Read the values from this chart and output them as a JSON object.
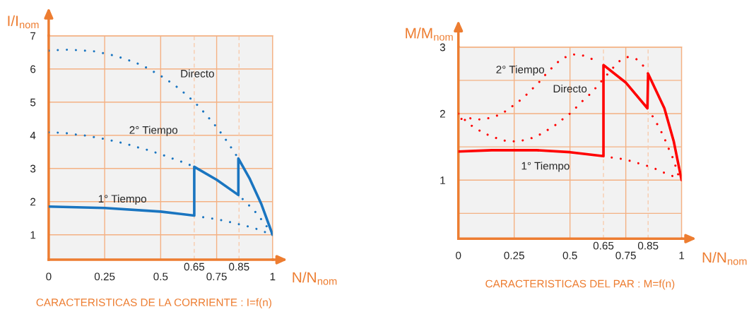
{
  "chart_data": [
    {
      "type": "line",
      "title": "CARACTERISTICAS DE LA CORRIENTE : I=f(n)",
      "xlabel": "N/N$_{nom}$",
      "ylabel": "I/I$_{nom}$",
      "xlim": [
        0,
        1
      ],
      "ylim": [
        0.25,
        7
      ],
      "xticks": [
        0,
        0.25,
        0.5,
        0.75,
        1
      ],
      "yticks": [
        1,
        2,
        3,
        4,
        5,
        6,
        7
      ],
      "grid": true,
      "series": [
        {
          "color": "#1a75c0",
          "line_style": "dotted",
          "x": [
            0,
            0.042,
            0.083,
            0.125,
            0.166,
            0.207,
            0.248,
            0.288,
            0.328,
            0.367,
            0.406,
            0.443,
            0.478,
            0.513,
            0.548,
            0.582,
            0.613,
            0.643,
            0.673,
            0.7,
            0.727,
            0.753,
            0.778,
            0.801,
            0.824,
            0.847
          ],
          "values": [
            6.55,
            6.57,
            6.58,
            6.57,
            6.55,
            6.53,
            6.47,
            6.41,
            6.33,
            6.24,
            6.14,
            6.02,
            5.88,
            5.74,
            5.58,
            5.41,
            5.23,
            5.05,
            4.85,
            4.64,
            4.43,
            4.22,
            3.99,
            3.77,
            3.54,
            3.3
          ]
        },
        {
          "color": "#1a75c0",
          "line_style": "dotted",
          "x": [
            0,
            0.042,
            0.083,
            0.125,
            0.166,
            0.207,
            0.248,
            0.288,
            0.328,
            0.367,
            0.406,
            0.447,
            0.486,
            0.525,
            0.564,
            0.603,
            0.643,
            0.75,
            0.866,
            0.896,
            0.924,
            0.95,
            0.975,
            1
          ],
          "values": [
            4.09,
            4.08,
            4.06,
            4.02,
            3.99,
            3.94,
            3.89,
            3.83,
            3.77,
            3.7,
            3.62,
            3.55,
            3.46,
            3.37,
            3.27,
            3.18,
            3.07,
            null,
            2.08,
            1.88,
            1.68,
            1.46,
            1.24,
            1.0
          ]
        },
        {
          "color": "#1a75c0",
          "line_style": "dotted",
          "x": [
            0.69,
            0.731,
            0.772,
            0.812,
            0.88,
            0.919,
            0.959,
            1
          ],
          "values": [
            1.53,
            1.49,
            1.44,
            1.38,
            1.27,
            1.2,
            1.1,
            1.0
          ]
        },
        {
          "color": "#1a75c0",
          "line_style": "solid",
          "x": [
            0,
            0.25,
            0.5,
            0.65,
            0.65,
            0.75,
            0.847,
            0.847,
            0.897,
            0.95,
            1
          ],
          "values": [
            1.85,
            1.81,
            1.7,
            1.58,
            3.05,
            2.66,
            2.2,
            3.3,
            2.7,
            1.92,
            1.0
          ]
        }
      ],
      "ref_lines": [
        {
          "axis": "x",
          "value": 0.65,
          "label": "0.65",
          "line_style": "dashed",
          "color": "#f8cbad"
        },
        {
          "axis": "x",
          "value": 0.85,
          "label": "0.85",
          "line_style": "dashed",
          "color": "#f8cbad"
        }
      ],
      "annotations": [
        "Directo",
        "2° Tiempo",
        "1° Tiempo"
      ]
    },
    {
      "type": "line",
      "title": "CARACTERISTICAS DEL PAR : M=f(n)",
      "xlabel": "N/N$_{nom}$",
      "ylabel": "M/M$_{nom}$",
      "xlim": [
        0,
        1
      ],
      "ylim": [
        0.12,
        3
      ],
      "xticks": [
        0,
        0.25,
        0.5,
        0.75,
        1
      ],
      "yticks": [
        {
          "value": 0.5,
          "label": null
        },
        1,
        {
          "value": 1.5,
          "label": null
        },
        2,
        {
          "value": 2.5,
          "label": null
        },
        3
      ],
      "grid": true,
      "series": [
        {
          "color": "#ff0000",
          "line_style": "dotted",
          "x": [
            0,
            0.049,
            0.082,
            0.118,
            0.156,
            0.195,
            0.237,
            0.278,
            0.319,
            0.357,
            0.393,
            0.428,
            0.461,
            0.493,
            0.524,
            0.553,
            0.583,
            0.611,
            0.639,
            0.665,
            0.693,
            0.722,
            0.759,
            0.797,
            0.828,
            0.85
          ],
          "values": [
            2.0,
            1.84,
            1.77,
            1.7,
            1.65,
            1.6,
            1.58,
            1.59,
            1.62,
            1.67,
            1.74,
            1.81,
            1.9,
            1.98,
            2.08,
            2.18,
            2.27,
            2.37,
            2.48,
            2.58,
            2.69,
            2.79,
            2.85,
            2.82,
            2.72,
            2.6
          ]
        },
        {
          "color": "#ff0000",
          "line_style": "dotted",
          "x": [
            0.014,
            0.039,
            0.08,
            0.12,
            0.16,
            0.2,
            0.233,
            0.266,
            0.298,
            0.327,
            0.356,
            0.383,
            0.411,
            0.44,
            0.473,
            0.512,
            0.553,
            0.592,
            0.629,
            0.75,
            0.87,
            0.891,
            0.91,
            0.928,
            0.944,
            0.96,
            0.974,
            0.986
          ],
          "values": [
            1.92,
            1.94,
            1.91,
            1.92,
            1.95,
            2.01,
            2.09,
            2.17,
            2.26,
            2.36,
            2.45,
            2.56,
            2.66,
            2.76,
            2.84,
            2.89,
            2.88,
            2.83,
            2.77,
            null,
            1.96,
            1.84,
            1.72,
            1.59,
            1.46,
            1.34,
            1.2,
            1.07
          ]
        },
        {
          "color": "#ff0000",
          "line_style": "dotted",
          "x": [
            0.687,
            0.729,
            0.769,
            0.81,
            0.85,
            0.89,
            0.929,
            0.968
          ],
          "values": [
            1.34,
            1.32,
            1.29,
            1.25,
            1.21,
            1.16,
            1.1,
            1.05
          ]
        },
        {
          "color": "#ff0000",
          "line_style": "solid",
          "x": [
            0,
            0.15,
            0.35,
            0.5,
            0.65,
            0.65,
            0.749,
            0.847,
            0.85,
            0.923,
            0.965,
            1
          ],
          "values": [
            1.43,
            1.45,
            1.45,
            1.42,
            1.36,
            2.73,
            2.47,
            2.08,
            2.6,
            2.08,
            1.58,
            1.0
          ]
        }
      ],
      "ref_lines": [
        {
          "axis": "x",
          "value": 0.65,
          "label": "0.65",
          "line_style": "dashed",
          "color": "#f8cbad"
        },
        {
          "axis": "x",
          "value": 0.85,
          "label": "0.85",
          "line_style": "dashed",
          "color": "#f8cbad"
        }
      ],
      "annotations": [
        "2° Tiempo",
        "Directo",
        "1° Tiempo"
      ]
    }
  ]
}
